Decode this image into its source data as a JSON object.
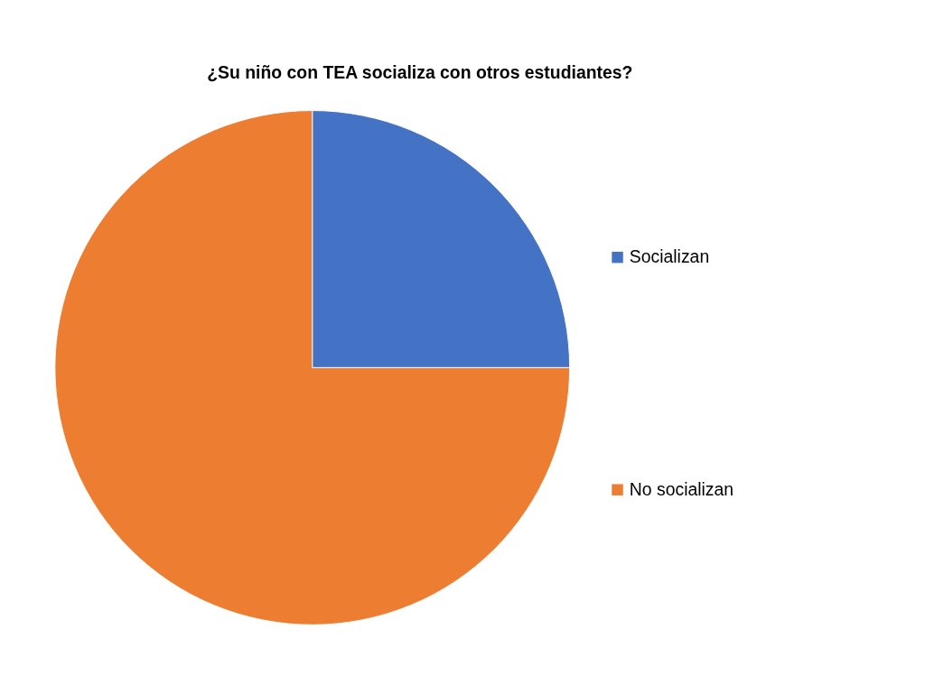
{
  "chart_data": {
    "type": "pie",
    "title": "¿Su niño con TEA socializa con otros estudiantes?",
    "categories": [
      "Socializan",
      "No socializan"
    ],
    "values": [
      25,
      75
    ],
    "colors": [
      "#4472c4",
      "#ed7d31"
    ],
    "legend": "right"
  }
}
